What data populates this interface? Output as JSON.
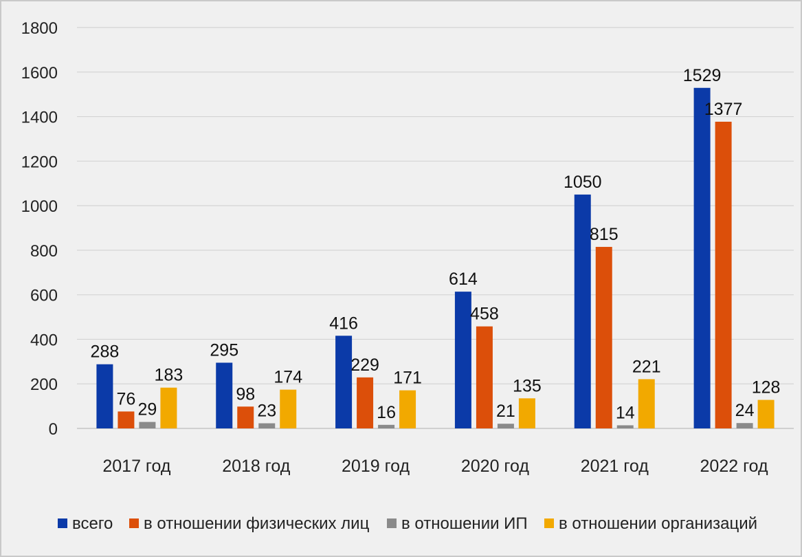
{
  "chart_data": {
    "type": "bar",
    "categories": [
      "2017 год",
      "2018 год",
      "2019 год",
      "2020 год",
      "2021 год",
      "2022 год"
    ],
    "series": [
      {
        "name": "всего",
        "color": "#0b3aa8",
        "values": [
          288,
          295,
          416,
          614,
          1050,
          1529
        ]
      },
      {
        "name": "в отношении физических лиц",
        "color": "#dc4f0a",
        "values": [
          76,
          98,
          229,
          458,
          815,
          1377
        ]
      },
      {
        "name": "в отношении ИП",
        "color": "#8a8a8a",
        "values": [
          29,
          23,
          16,
          21,
          14,
          24
        ]
      },
      {
        "name": "в отношении организаций",
        "color": "#f2a900",
        "values": [
          183,
          174,
          171,
          135,
          221,
          128
        ]
      }
    ],
    "ylim": [
      0,
      1800
    ],
    "yticks": [
      0,
      200,
      400,
      600,
      800,
      1000,
      1200,
      1400,
      1600,
      1800
    ],
    "grid": true,
    "legend_position": "bottom",
    "title": "",
    "xlabel": "",
    "ylabel": ""
  }
}
